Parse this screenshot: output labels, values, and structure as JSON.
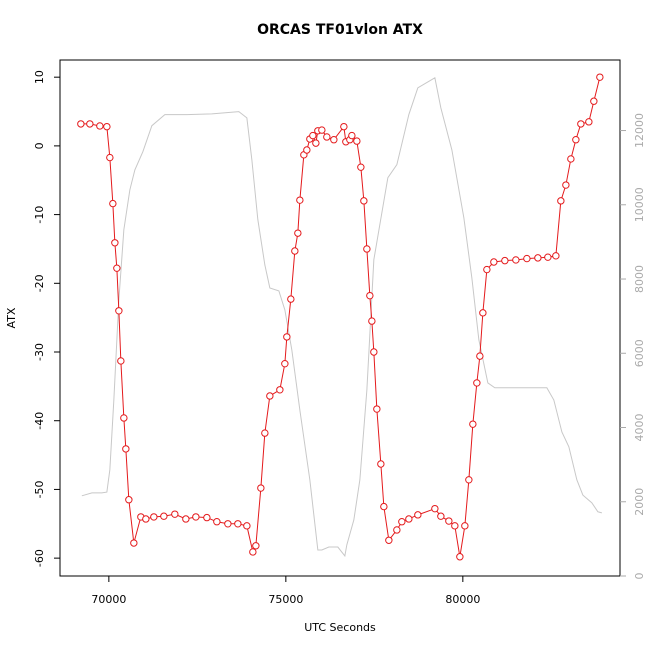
{
  "chart_data": {
    "type": "line",
    "title": "ORCAS TF01vlon ATX",
    "x_label": "UTC Seconds",
    "y_label": "ATX",
    "xlim": [
      68620,
      84440
    ],
    "xticks": [
      70000,
      75000,
      80000
    ],
    "ylim": [
      -62.6,
      12.5
    ],
    "yticks": [
      -60,
      -50,
      -40,
      -30,
      -20,
      -10,
      0,
      10
    ],
    "y2lim": [
      0,
      13900
    ],
    "y2ticks": [
      0,
      2000,
      4000,
      6000,
      8000,
      10000,
      12000
    ],
    "series": [
      {
        "color": "#e41a1c",
        "marker": "circle",
        "x": [
          69209,
          69463,
          69746,
          69944,
          70028,
          70113,
          70170,
          70226,
          70283,
          70339,
          70424,
          70480,
          70565,
          70706,
          70904,
          71045,
          71271,
          71554,
          71864,
          72175,
          72458,
          72769,
          73051,
          73362,
          73644,
          73899,
          74068,
          74153,
          74294,
          74407,
          74548,
          74831,
          74972,
          75028,
          75141,
          75254,
          75339,
          75396,
          75509,
          75593,
          75678,
          75763,
          75848,
          75904,
          76017,
          76158,
          76356,
          76639,
          76695,
          76808,
          76865,
          77006,
          77119,
          77204,
          77289,
          77373,
          77430,
          77486,
          77571,
          77684,
          77769,
          77910,
          78136,
          78277,
          78475,
          78729,
          79210,
          79379,
          79605,
          79774,
          79916,
          80057,
          80170,
          80283,
          80396,
          80481,
          80566,
          80679,
          80876,
          81187,
          81498,
          81809,
          82120,
          82402,
          82628,
          82769,
          82911,
          83052,
          83193,
          83334,
          83560,
          83701,
          83871
        ],
        "values": [
          3.2,
          3.2,
          2.9,
          2.8,
          -1.7,
          -8.4,
          -14.1,
          -17.8,
          -24.0,
          -31.3,
          -39.6,
          -44.1,
          -51.5,
          -57.8,
          -54.0,
          -54.3,
          -54.0,
          -53.9,
          -53.6,
          -54.3,
          -54.0,
          -54.1,
          -54.7,
          -55.0,
          -55.0,
          -55.3,
          -59.1,
          -58.2,
          -49.8,
          -41.8,
          -36.4,
          -35.5,
          -31.7,
          -27.8,
          -22.3,
          -15.3,
          -12.7,
          -7.9,
          -1.3,
          -0.6,
          1.0,
          1.5,
          0.4,
          2.2,
          2.3,
          1.3,
          0.9,
          2.8,
          0.6,
          0.9,
          1.5,
          0.7,
          -3.1,
          -8.0,
          -15.0,
          -21.8,
          -25.5,
          -30.0,
          -38.3,
          -46.3,
          -52.5,
          -57.4,
          -55.9,
          -54.7,
          -54.3,
          -53.7,
          -52.8,
          -53.9,
          -54.6,
          -55.3,
          -59.8,
          -55.3,
          -48.6,
          -40.5,
          -34.5,
          -30.6,
          -24.3,
          -18.0,
          -16.9,
          -16.7,
          -16.6,
          -16.4,
          -16.3,
          -16.2,
          -16.0,
          -8.0,
          -5.7,
          -1.9,
          0.9,
          3.2,
          3.5,
          6.5,
          10.0
        ]
      },
      {
        "color": "#c8c8c8",
        "axis": "y2",
        "x": [
          69237,
          69520,
          69802,
          69944,
          70028,
          70141,
          70283,
          70424,
          70593,
          70735,
          70961,
          71215,
          71582,
          72203,
          72910,
          73672,
          73899,
          74040,
          74209,
          74407,
          74548,
          74803,
          74972,
          75169,
          75396,
          75678,
          75904,
          76017,
          76215,
          76469,
          76667,
          76723,
          76921,
          77091,
          77289,
          77486,
          77882,
          78136,
          78475,
          78729,
          79210,
          79379,
          79690,
          80029,
          80255,
          80453,
          80707,
          80904,
          81243,
          82373,
          82571,
          82798,
          82995,
          83221,
          83391,
          83645,
          83815,
          83928
        ],
        "values": [
          2160,
          2240,
          2240,
          2260,
          2860,
          4740,
          7440,
          9330,
          10400,
          10940,
          11430,
          12130,
          12430,
          12430,
          12450,
          12510,
          12340,
          11210,
          9600,
          8380,
          7760,
          7680,
          7170,
          6090,
          4470,
          2590,
          700,
          700,
          780,
          780,
          540,
          840,
          1510,
          2590,
          5010,
          8520,
          10730,
          11080,
          12430,
          13150,
          13420,
          12610,
          11480,
          9650,
          8030,
          6360,
          5200,
          5070,
          5070,
          5070,
          4740,
          3880,
          3480,
          2590,
          2180,
          1970,
          1730,
          1700
        ]
      }
    ]
  }
}
